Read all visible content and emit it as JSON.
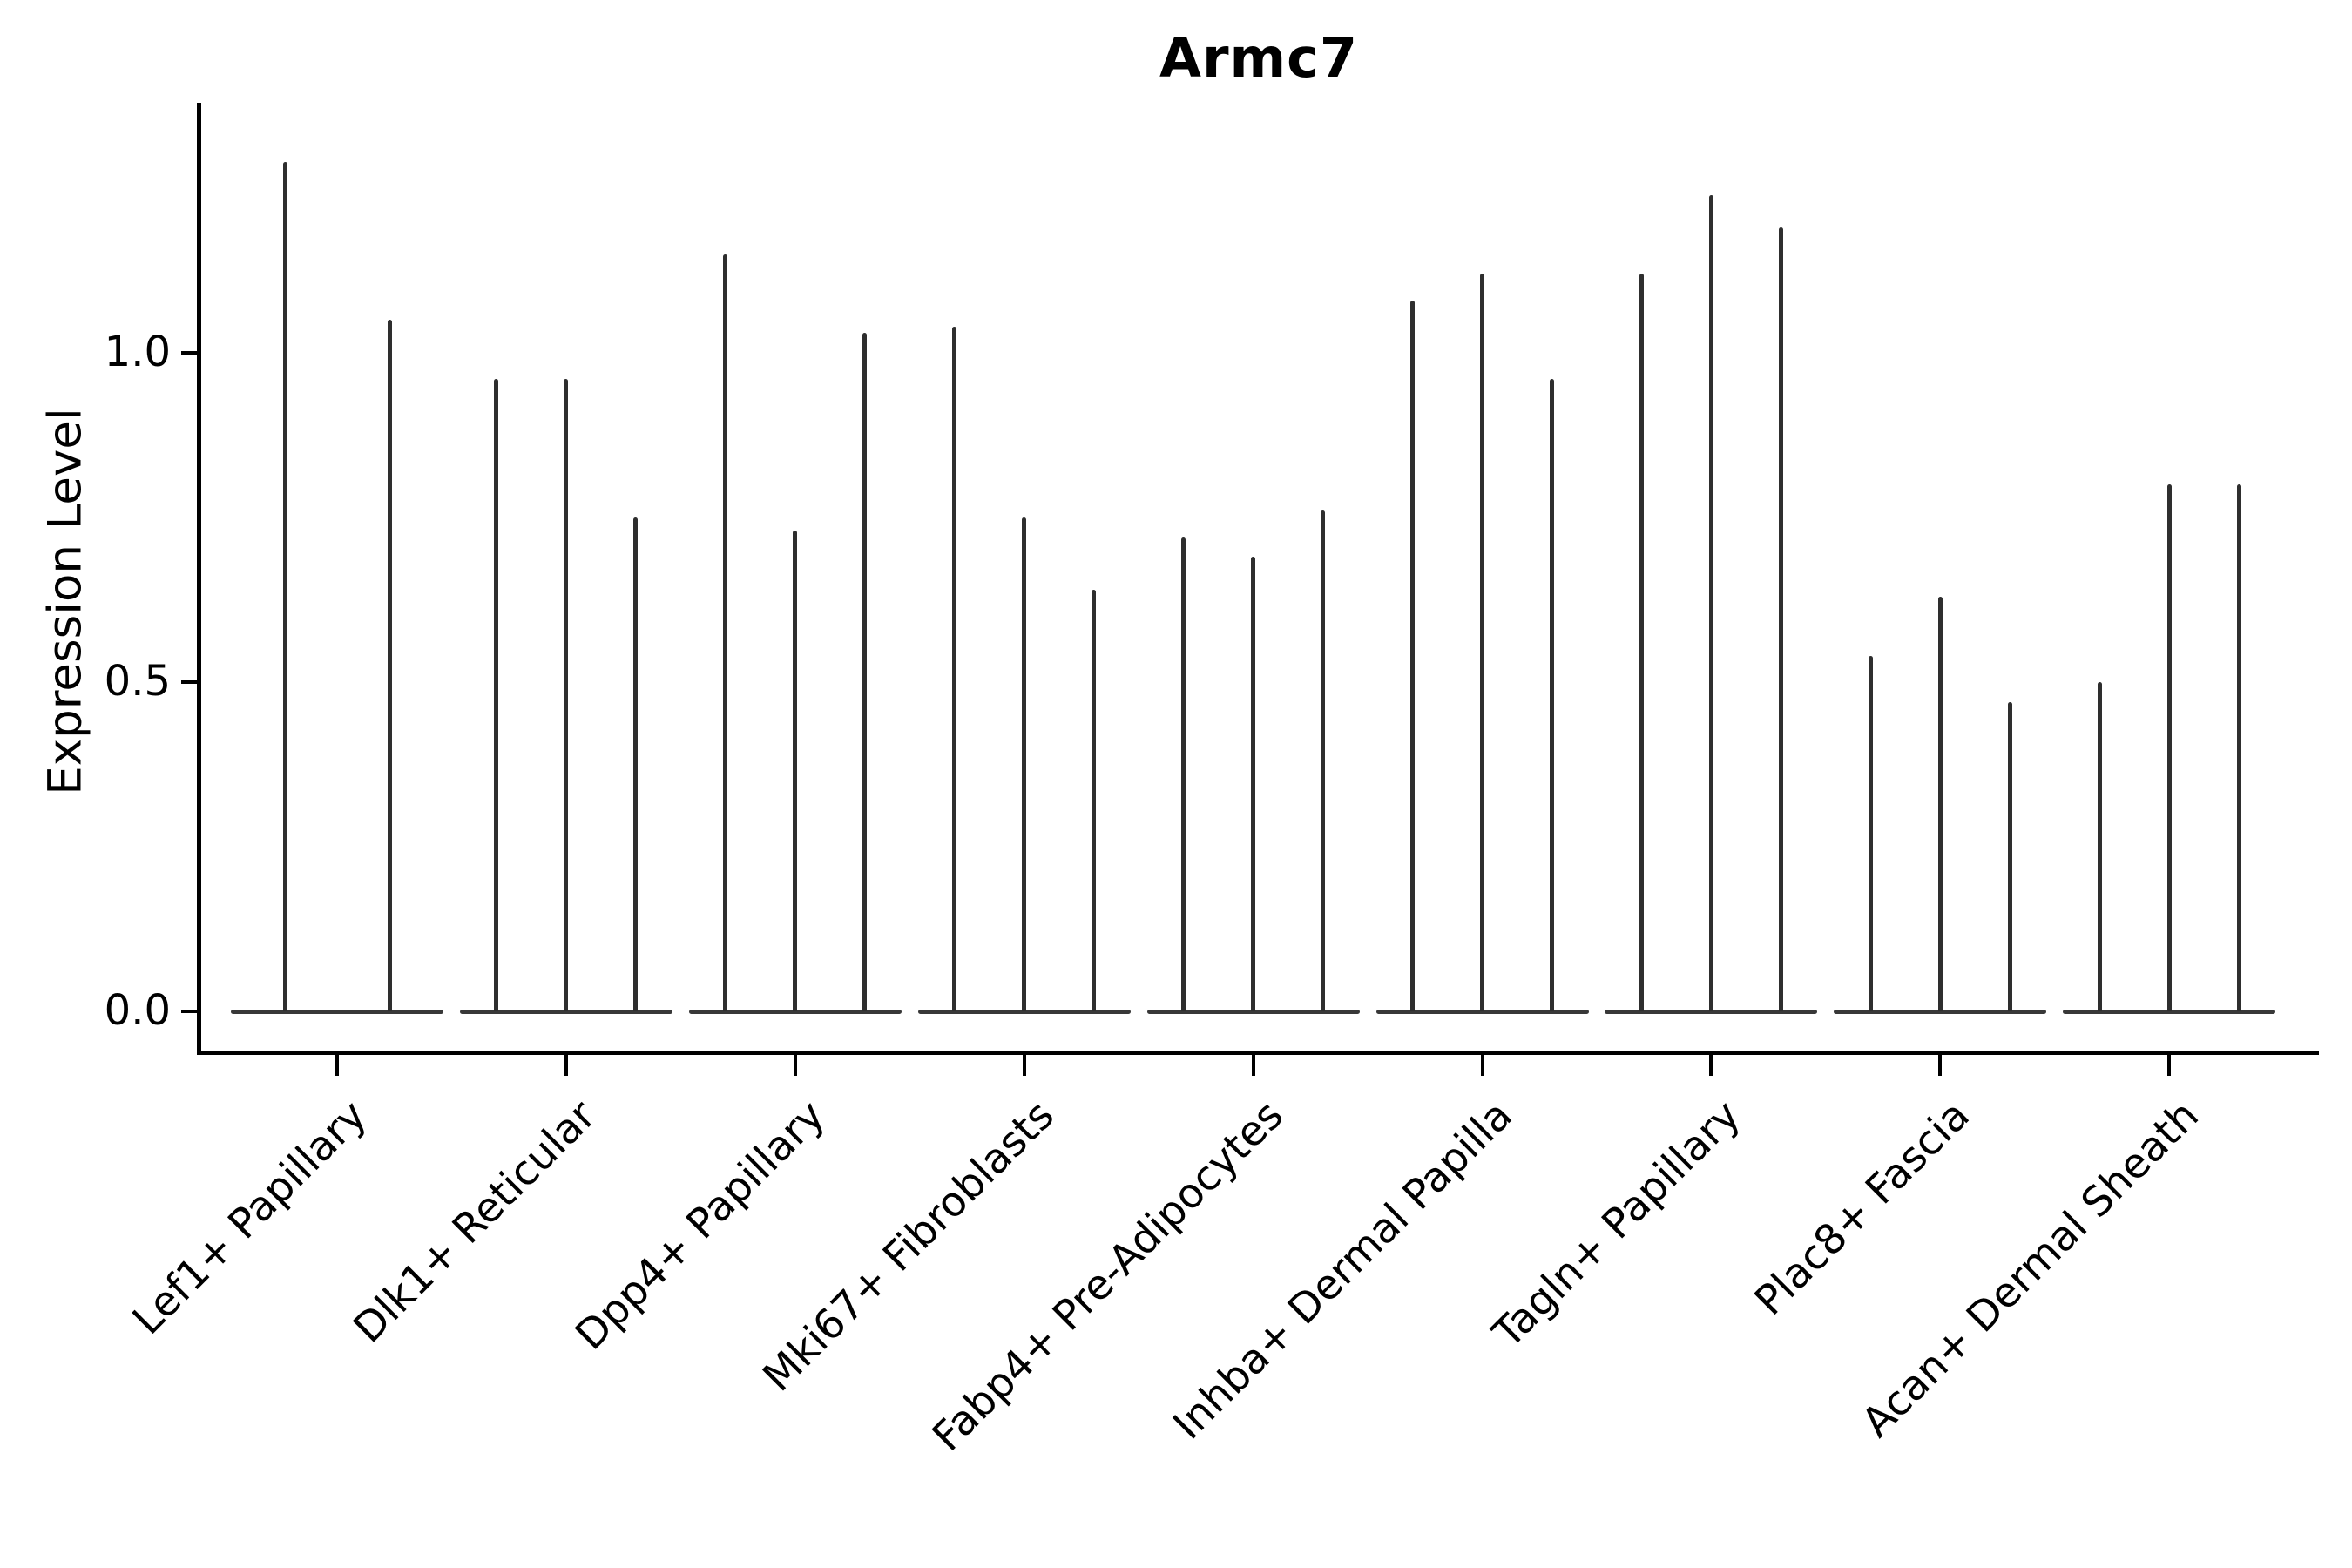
{
  "figure": {
    "title": "Armc7",
    "y_axis": {
      "label": "Expression Level",
      "tick_labels": [
        "0.0",
        "0.5",
        "1.0"
      ],
      "tick_values": [
        0.0,
        0.5,
        1.0
      ]
    }
  },
  "chart_data": {
    "type": "violin",
    "title": "Armc7",
    "xlabel": "",
    "ylabel": "Expression Level",
    "ylim": [
      -0.07,
      1.38
    ],
    "yticks": [
      0.0,
      0.5,
      1.0
    ],
    "grid": false,
    "legend": "none",
    "note": "needle-shaped violins; each category shows 2-3 narrow violins whose flat bases sit at 0 and whose tips reach the listed maximum expression values",
    "violin_color": "#2e2e2e",
    "categories": [
      "Lef1+ Papillary",
      "Dlk1+ Reticular",
      "Dpp4+ Papillary",
      "Mki67+ Fibroblasts",
      "Fabp4+ Pre-Adipocytes",
      "Inhba+ Dermal Papilla",
      "Tagln+ Papillary",
      "Plac8+ Fascia",
      "Acan+ Dermal Sheath"
    ],
    "groups": [
      {
        "category": "Lef1+ Papillary",
        "violin_maxima": [
          1.29,
          1.05
        ]
      },
      {
        "category": "Dlk1+ Reticular",
        "violin_maxima": [
          0.96,
          0.96,
          0.75
        ]
      },
      {
        "category": "Dpp4+ Papillary",
        "violin_maxima": [
          1.15,
          0.73,
          1.03
        ]
      },
      {
        "category": "Mki67+ Fibroblasts",
        "violin_maxima": [
          1.04,
          0.75,
          0.64
        ]
      },
      {
        "category": "Fabp4+ Pre-Adipocytes",
        "violin_maxima": [
          0.72,
          0.69,
          0.76
        ]
      },
      {
        "category": "Inhba+ Dermal Papilla",
        "violin_maxima": [
          1.08,
          1.12,
          0.96
        ]
      },
      {
        "category": "Tagln+ Papillary",
        "violin_maxima": [
          1.12,
          1.24,
          1.19
        ]
      },
      {
        "category": "Plac8+ Fascia",
        "violin_maxima": [
          0.54,
          0.63,
          0.47
        ]
      },
      {
        "category": "Acan+ Dermal Sheath",
        "violin_maxima": [
          0.5,
          0.8,
          0.8
        ]
      }
    ]
  }
}
